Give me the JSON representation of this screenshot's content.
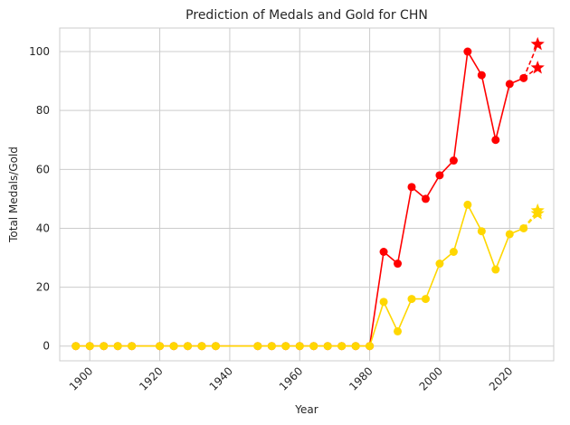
{
  "chart_data": {
    "type": "line",
    "title": "Prediction of Medals and Gold for CHN",
    "xlabel": "Year",
    "ylabel": "Total Medals/Gold",
    "xlim": [
      1891.4,
      2032.6
    ],
    "ylim": [
      -5,
      108
    ],
    "xticks": [
      1900,
      1920,
      1940,
      1960,
      1980,
      2000,
      2020
    ],
    "yticks": [
      0,
      20,
      40,
      60,
      80,
      100
    ],
    "grid": true,
    "legend": "none",
    "x": [
      1896,
      1900,
      1904,
      1908,
      1912,
      1920,
      1924,
      1928,
      1932,
      1936,
      1948,
      1952,
      1956,
      1960,
      1964,
      1968,
      1972,
      1976,
      1980,
      1984,
      1988,
      1992,
      1996,
      2000,
      2004,
      2008,
      2012,
      2016,
      2020,
      2024
    ],
    "series": [
      {
        "color": "#ff0000",
        "values": [
          0,
          0,
          0,
          0,
          0,
          0,
          0,
          0,
          0,
          0,
          0,
          0,
          0,
          0,
          0,
          0,
          0,
          0,
          0,
          32,
          28,
          54,
          50,
          58,
          63,
          100,
          92,
          70,
          89,
          91
        ],
        "predictions": [
          {
            "x": 2028,
            "y": 102.5
          },
          {
            "x": 2028,
            "y": 94.5
          }
        ]
      },
      {
        "color": "#ffd700",
        "values": [
          0,
          0,
          0,
          0,
          0,
          0,
          0,
          0,
          0,
          0,
          0,
          0,
          0,
          0,
          0,
          0,
          0,
          0,
          0,
          15,
          5,
          16,
          16,
          28,
          32,
          48,
          39,
          26,
          38,
          40
        ],
        "predictions": [
          {
            "x": 2028,
            "y": 46
          },
          {
            "x": 2028,
            "y": 45
          }
        ]
      }
    ]
  }
}
